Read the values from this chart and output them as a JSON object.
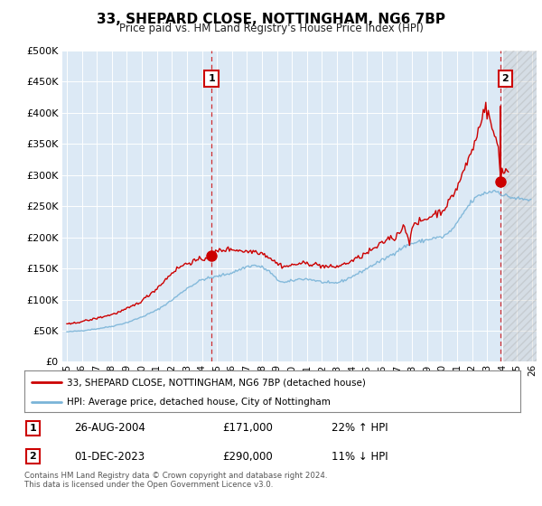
{
  "title": "33, SHEPARD CLOSE, NOTTINGHAM, NG6 7BP",
  "subtitle": "Price paid vs. HM Land Registry's House Price Index (HPI)",
  "ytick_values": [
    0,
    50000,
    100000,
    150000,
    200000,
    250000,
    300000,
    350000,
    400000,
    450000,
    500000
  ],
  "ylim": [
    0,
    500000
  ],
  "xlim_left": 1994.7,
  "xlim_right": 2026.3,
  "hpi_color": "#7ab4d8",
  "price_color": "#cc0000",
  "marker1_date": "26-AUG-2004",
  "marker1_price": "£171,000",
  "marker1_pct": "22% ↑ HPI",
  "marker1_x": 2004.64,
  "marker1_y": 171000,
  "marker2_date": "01-DEC-2023",
  "marker2_price": "£290,000",
  "marker2_pct": "11% ↓ HPI",
  "marker2_x": 2023.92,
  "marker2_y": 290000,
  "marker2_line_top_y": 410000,
  "legend_line1": "33, SHEPARD CLOSE, NOTTINGHAM, NG6 7BP (detached house)",
  "legend_line2": "HPI: Average price, detached house, City of Nottingham",
  "footer": "Contains HM Land Registry data © Crown copyright and database right 2024.\nThis data is licensed under the Open Government Licence v3.0.",
  "hatch_start_x": 2024.08,
  "chart_bg": "#dce9f5"
}
